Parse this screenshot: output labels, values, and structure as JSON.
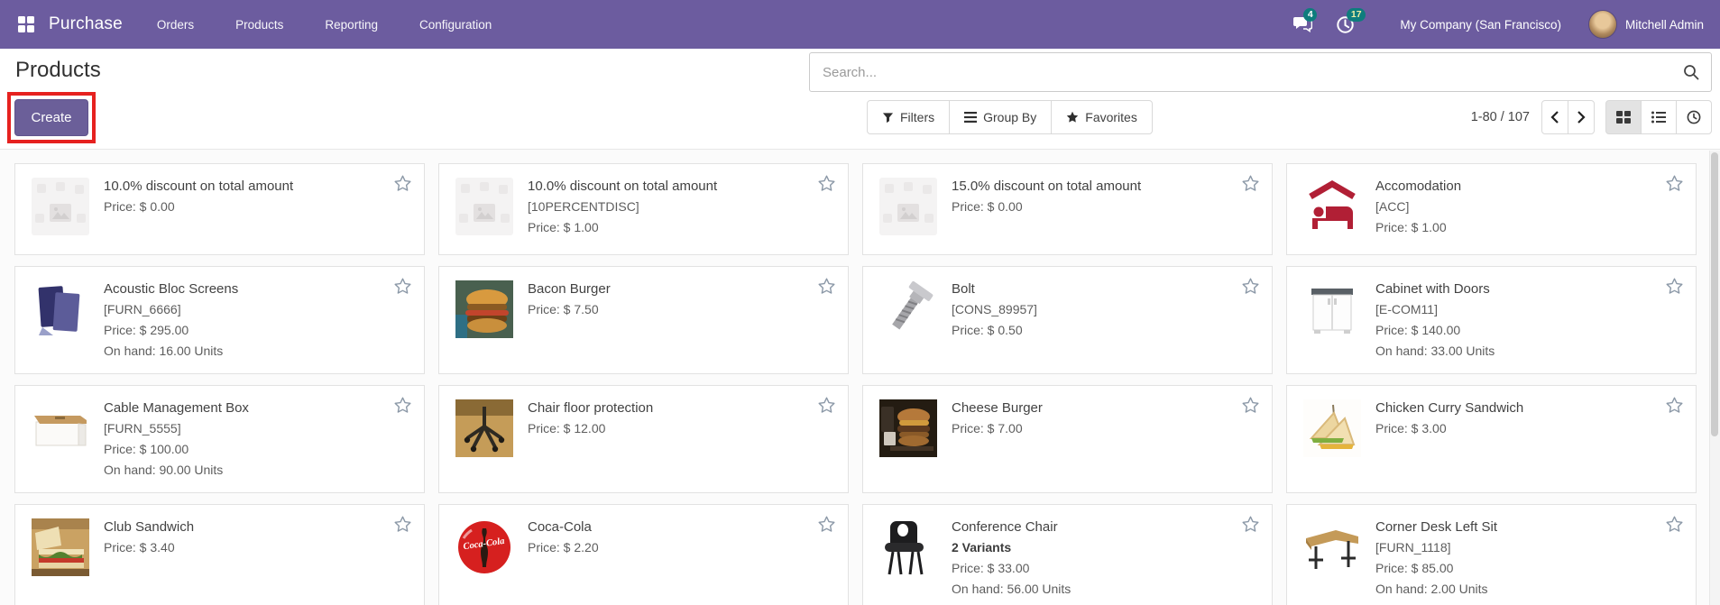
{
  "nav": {
    "app_name": "Purchase",
    "menu_items": [
      "Orders",
      "Products",
      "Reporting",
      "Configuration"
    ],
    "messages_count": "4",
    "activities_count": "17",
    "company": "My Company (San Francisco)",
    "user": "Mitchell Admin"
  },
  "control_panel": {
    "title": "Products",
    "create_label": "Create",
    "search_placeholder": "Search...",
    "filters_label": "Filters",
    "group_by_label": "Group By",
    "favorites_label": "Favorites",
    "pager": "1-80 / 107"
  },
  "colors": {
    "navbar": "#6c5c9f",
    "accent_button": "#6b5f99",
    "badge": "#0e7d7d",
    "annotation_box": "#e6211f"
  },
  "products": [
    {
      "name": "10.0% discount on total amount",
      "price": "Price: $ 0.00",
      "image": "placeholder"
    },
    {
      "name": "10.0% discount on total amount",
      "code": "[10PERCENTDISC]",
      "price": "Price: $ 1.00",
      "image": "placeholder"
    },
    {
      "name": "15.0% discount on total amount",
      "price": "Price: $ 0.00",
      "image": "placeholder"
    },
    {
      "name": "Accomodation",
      "code": "[ACC]",
      "price": "Price: $ 1.00",
      "image": "bed"
    },
    {
      "name": "Acoustic Bloc Screens",
      "code": "[FURN_6666]",
      "price": "Price: $ 295.00",
      "on_hand": "On hand: 16.00 Units",
      "image": "screens"
    },
    {
      "name": "Bacon Burger",
      "price": "Price: $ 7.50",
      "image": "bacon-burger"
    },
    {
      "name": "Bolt",
      "code": "[CONS_89957]",
      "price": "Price: $ 0.50",
      "image": "bolt"
    },
    {
      "name": "Cabinet with Doors",
      "code": "[E-COM11]",
      "price": "Price: $ 140.00",
      "on_hand": "On hand: 33.00 Units",
      "image": "cabinet"
    },
    {
      "name": "Cable Management Box",
      "code": "[FURN_5555]",
      "price": "Price: $ 100.00",
      "on_hand": "On hand: 90.00 Units",
      "image": "cable-box"
    },
    {
      "name": "Chair floor protection",
      "price": "Price: $ 12.00",
      "image": "chair-floor"
    },
    {
      "name": "Cheese Burger",
      "price": "Price: $ 7.00",
      "image": "cheese-burger"
    },
    {
      "name": "Chicken Curry Sandwich",
      "price": "Price: $ 3.00",
      "image": "chicken-sandwich"
    },
    {
      "name": "Club Sandwich",
      "price": "Price: $ 3.40",
      "image": "club-sandwich"
    },
    {
      "name": "Coca-Cola",
      "price": "Price: $ 2.20",
      "image": "coca-cola"
    },
    {
      "name": "Conference Chair",
      "variants": "2 Variants",
      "price": "Price: $ 33.00",
      "on_hand": "On hand: 56.00 Units",
      "image": "conference-chair"
    },
    {
      "name": "Corner Desk Left Sit",
      "code": "[FURN_1118]",
      "price": "Price: $ 85.00",
      "on_hand": "On hand: 2.00 Units",
      "image": "corner-desk"
    }
  ]
}
